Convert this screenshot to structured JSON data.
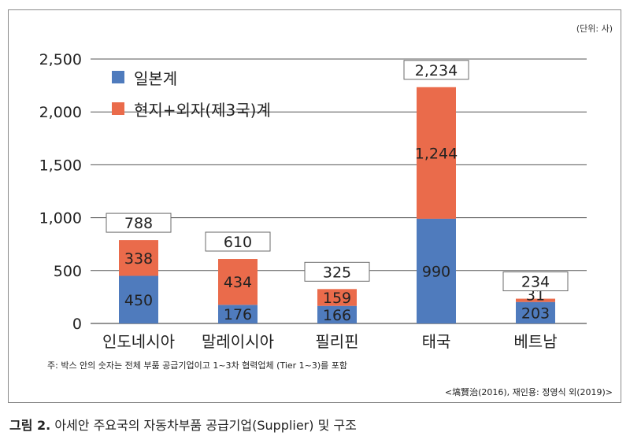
{
  "unit_label": "(단위: 사)",
  "footnote": "주: 박스 안의 숫자는 전체 부품 공급기업이고 1~3차 협력업체 (Tier 1~3)를 포함",
  "source": "<塙賢治(2016), 재인용: 정영식 외(2019)>",
  "caption": {
    "figure_label": "그림 2.",
    "text": " 아세안 주요국의 자동차부품 공급기업(Supplier) 및 구조"
  },
  "colors": {
    "japanese": "#4f7bbd",
    "local_foreign": "#ea6b4b",
    "grid": "#555555",
    "box_border": "#6b6b6b"
  },
  "chart_data": {
    "type": "bar",
    "stacked": true,
    "categories": [
      "인도네시아",
      "말레이시아",
      "필리핀",
      "태국",
      "베트남"
    ],
    "series": [
      {
        "name": "일본계",
        "values": [
          450,
          176,
          166,
          990,
          203
        ]
      },
      {
        "name": "현지+외자(제3국)계",
        "values": [
          338,
          434,
          159,
          1244,
          31
        ]
      }
    ],
    "totals": [
      788,
      610,
      325,
      2234,
      234
    ],
    "y_ticks": [
      "0",
      "500",
      "1,000",
      "1,500",
      "2,000",
      "2,500"
    ],
    "ylim": [
      0,
      2500
    ],
    "grid": true,
    "legend_position": "top-left"
  }
}
